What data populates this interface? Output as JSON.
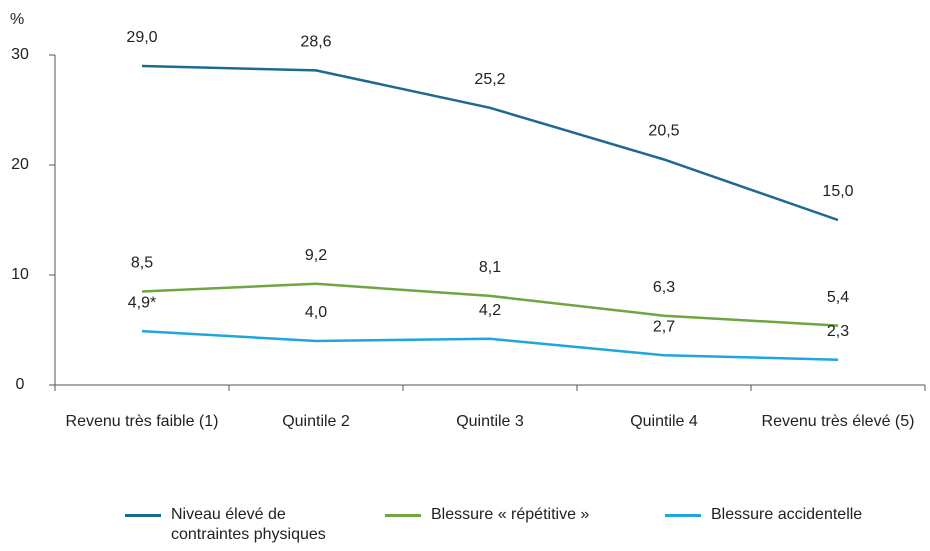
{
  "chart_data": {
    "type": "line",
    "y_label": "%",
    "categories": [
      "Revenu très faible (1)",
      "Quintile 2",
      "Quintile 3",
      "Quintile 4",
      "Revenu très élevé (5)"
    ],
    "series": [
      {
        "name": "Niveau élevé de contraintes physiques",
        "color": "#1d6991",
        "values": [
          29.0,
          28.6,
          25.2,
          20.5,
          15.0
        ],
        "value_labels": [
          "29,0",
          "28,6",
          "25,2",
          "20,5",
          "15,0"
        ]
      },
      {
        "name": "Blessure « répétitive »",
        "color": "#6fa642",
        "values": [
          8.5,
          9.2,
          8.1,
          6.3,
          5.4
        ],
        "value_labels": [
          "8,5",
          "9,2",
          "8,1",
          "6,3",
          "5,4"
        ]
      },
      {
        "name": "Blessure accidentelle",
        "color": "#1ea6dd",
        "values": [
          4.9,
          4.0,
          4.2,
          2.7,
          2.3
        ],
        "value_labels": [
          "4,9*",
          "4,0",
          "4,2",
          "2,7",
          "2,3"
        ]
      }
    ],
    "ylim": [
      0,
      30
    ],
    "yticks": [
      0,
      10,
      20,
      30
    ],
    "grid": false,
    "legend": "bottom"
  }
}
